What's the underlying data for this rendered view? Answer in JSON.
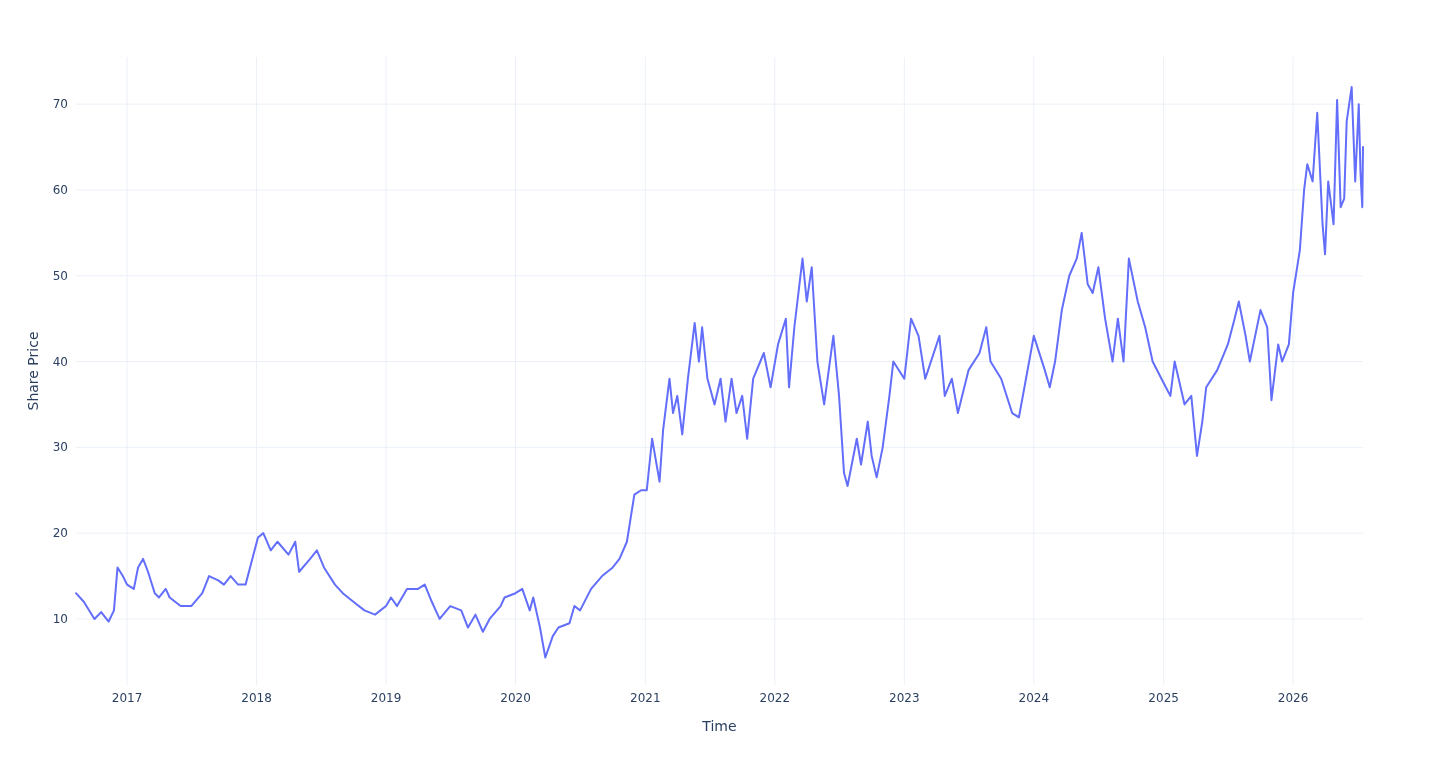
{
  "chart_data": {
    "type": "line",
    "xlabel": "Time",
    "ylabel": "Share Price",
    "x": [
      "2016-08-10",
      "2016-09-01",
      "2016-10-01",
      "2016-10-20",
      "2016-11-10",
      "2016-11-25",
      "2016-12-05",
      "2016-12-20",
      "2017-01-01",
      "2017-01-20",
      "2017-02-01",
      "2017-02-15",
      "2017-03-01",
      "2017-03-20",
      "2017-04-01",
      "2017-04-20",
      "2017-05-01",
      "2017-06-01",
      "2017-07-01",
      "2017-08-01",
      "2017-08-20",
      "2017-09-15",
      "2017-10-01",
      "2017-10-20",
      "2017-11-10",
      "2017-12-01",
      "2017-12-20",
      "2018-01-05",
      "2018-01-20",
      "2018-02-10",
      "2018-03-01",
      "2018-04-01",
      "2018-04-20",
      "2018-05-01",
      "2018-06-01",
      "2018-06-20",
      "2018-07-10",
      "2018-08-10",
      "2018-09-01",
      "2018-10-01",
      "2018-11-01",
      "2018-12-01",
      "2019-01-01",
      "2019-01-15",
      "2019-02-01",
      "2019-03-01",
      "2019-04-01",
      "2019-04-20",
      "2019-05-10",
      "2019-06-01",
      "2019-07-01",
      "2019-08-01",
      "2019-08-20",
      "2019-09-10",
      "2019-10-01",
      "2019-10-20",
      "2019-11-20",
      "2019-12-01",
      "2020-01-01",
      "2020-01-20",
      "2020-02-10",
      "2020-02-20",
      "2020-03-10",
      "2020-03-25",
      "2020-04-15",
      "2020-05-01",
      "2020-06-01",
      "2020-06-15",
      "2020-07-01",
      "2020-08-01",
      "2020-09-01",
      "2020-10-01",
      "2020-10-20",
      "2020-11-10",
      "2020-12-01",
      "2020-12-20",
      "2021-01-05",
      "2021-01-20",
      "2021-02-10",
      "2021-02-20",
      "2021-03-10",
      "2021-03-20",
      "2021-04-01",
      "2021-04-15",
      "2021-05-01",
      "2021-05-20",
      "2021-06-01",
      "2021-06-10",
      "2021-06-25",
      "2021-07-15",
      "2021-08-01",
      "2021-08-15",
      "2021-09-01",
      "2021-09-15",
      "2021-10-01",
      "2021-10-15",
      "2021-11-01",
      "2021-12-01",
      "2021-12-20",
      "2022-01-10",
      "2022-02-01",
      "2022-02-10",
      "2022-02-25",
      "2022-03-20",
      "2022-04-01",
      "2022-04-15",
      "2022-05-01",
      "2022-05-20",
      "2022-06-15",
      "2022-07-01",
      "2022-07-15",
      "2022-07-25",
      "2022-08-20",
      "2022-09-01",
      "2022-09-20",
      "2022-10-01",
      "2022-10-15",
      "2022-11-01",
      "2022-11-20",
      "2022-12-01",
      "2023-01-01",
      "2023-01-20",
      "2023-02-10",
      "2023-03-01",
      "2023-04-10",
      "2023-04-25",
      "2023-05-15",
      "2023-06-01",
      "2023-07-01",
      "2023-08-01",
      "2023-08-20",
      "2023-09-01",
      "2023-10-01",
      "2023-11-01",
      "2023-11-20",
      "2023-12-10",
      "2024-01-01",
      "2024-02-01",
      "2024-02-15",
      "2024-03-01",
      "2024-03-20",
      "2024-04-10",
      "2024-05-01",
      "2024-05-15",
      "2024-06-01",
      "2024-06-15",
      "2024-07-01",
      "2024-07-20",
      "2024-08-10",
      "2024-08-25",
      "2024-09-10",
      "2024-09-25",
      "2024-10-20",
      "2024-11-10",
      "2024-12-01",
      "2025-01-01",
      "2025-01-20",
      "2025-02-01",
      "2025-03-01",
      "2025-03-20",
      "2025-04-05",
      "2025-04-20",
      "2025-05-01",
      "2025-06-01",
      "2025-07-01",
      "2025-07-20",
      "2025-08-01",
      "2025-08-20",
      "2025-09-01",
      "2025-10-01",
      "2025-10-20",
      "2025-11-01",
      "2025-11-20",
      "2025-12-01",
      "2025-12-20",
      "2026-01-01",
      "2026-01-20",
      "2026-02-01",
      "2026-02-10",
      "2026-02-25",
      "2026-03-10",
      "2026-03-25",
      "2026-04-01",
      "2026-04-10",
      "2026-04-25",
      "2026-05-05",
      "2026-05-15",
      "2026-05-25",
      "2026-06-01",
      "2026-06-15",
      "2026-06-25",
      "2026-07-05",
      "2026-07-10",
      "2026-07-15",
      "2026-07-17"
    ],
    "series": [
      {
        "color": "#636efa",
        "values": [
          13,
          12,
          10,
          10.8,
          9.7,
          11,
          16,
          15,
          14,
          13.5,
          16,
          17,
          15.5,
          13,
          12.5,
          13.5,
          12.5,
          11.5,
          11.5,
          13,
          15,
          14.5,
          14,
          15,
          14,
          14,
          17,
          19.5,
          20,
          18,
          19,
          17.5,
          19,
          15.5,
          17,
          18,
          16,
          14,
          13,
          12,
          11,
          10.5,
          11.5,
          12.5,
          11.5,
          13.5,
          13.5,
          14,
          12,
          10,
          11.5,
          11,
          9,
          10.5,
          8.5,
          10,
          11.5,
          12.5,
          13,
          13.5,
          11,
          12.5,
          9,
          5.5,
          8,
          9,
          9.5,
          11.5,
          11,
          13.5,
          15,
          16,
          17,
          19,
          24.5,
          25,
          25,
          31,
          26,
          32,
          38,
          34,
          36,
          31.5,
          38,
          44.5,
          40,
          44,
          38,
          35,
          38,
          33,
          38,
          34,
          36,
          31,
          38,
          41,
          37,
          42,
          45,
          37,
          44,
          52,
          47,
          51,
          40,
          35,
          43,
          36,
          27,
          25.5,
          31,
          28,
          33,
          29,
          26.5,
          30,
          36,
          40,
          38,
          45,
          43,
          38,
          43,
          36,
          38,
          34,
          39,
          41,
          44,
          40,
          38,
          34,
          33.5,
          38,
          43,
          39,
          37,
          40,
          46,
          50,
          52,
          55,
          49,
          48,
          51,
          45,
          40,
          45,
          40,
          52,
          47,
          44,
          40,
          37.5,
          36,
          40,
          35,
          36,
          29,
          33,
          37,
          39,
          42,
          45,
          47,
          43,
          40,
          46,
          44,
          35.5,
          42,
          40,
          42,
          48,
          53,
          60,
          63,
          61,
          69,
          56,
          52.5,
          61,
          56,
          70.5,
          58,
          59,
          68,
          72,
          61,
          70,
          62,
          58,
          65
        ]
      }
    ],
    "xlim": [
      "2016-08-10",
      "2026-07-17"
    ],
    "xticks": [
      "2017",
      "2018",
      "2019",
      "2020",
      "2021",
      "2022",
      "2023",
      "2024",
      "2025",
      "2026"
    ],
    "ylim": [
      2.3,
      75.5
    ],
    "yticks": [
      10,
      20,
      30,
      40,
      50,
      60,
      70
    ],
    "grid": true,
    "line_style": "solid"
  }
}
